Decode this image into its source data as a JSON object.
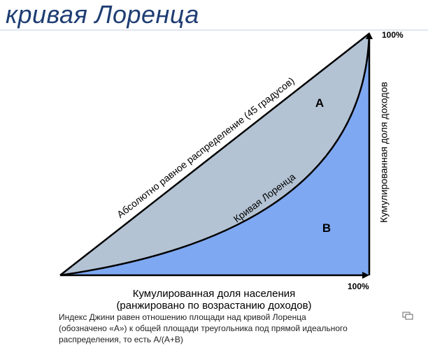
{
  "slide": {
    "title": "кривая Лоренца"
  },
  "diagram": {
    "labels": {
      "equality_line": "Абсолютно равное распределение (45 градусов)",
      "lorenz_curve": "Кривая Лоренца",
      "area_a": "A",
      "area_b": "B",
      "x_axis_line1": "Кумулированная доля населения",
      "x_axis_line2": "(ранжировано по возрастанию доходов)",
      "y_axis": "Кумулированная доля доходов",
      "x_max": "100%",
      "y_max": "100%"
    },
    "colors": {
      "area_a_fill": "#b3c3d4",
      "area_b_fill": "#7fa8f2",
      "lines": "#000000"
    }
  },
  "caption": {
    "line1": "Индекс Джини равен отношению площади над кривой Лоренца",
    "line2": "(обозначено «А») к общей площади треугольника под прямой идеального",
    "line3": "распределения, то есть А/(А+В)"
  },
  "icons": {
    "corner": "expand-icon"
  }
}
